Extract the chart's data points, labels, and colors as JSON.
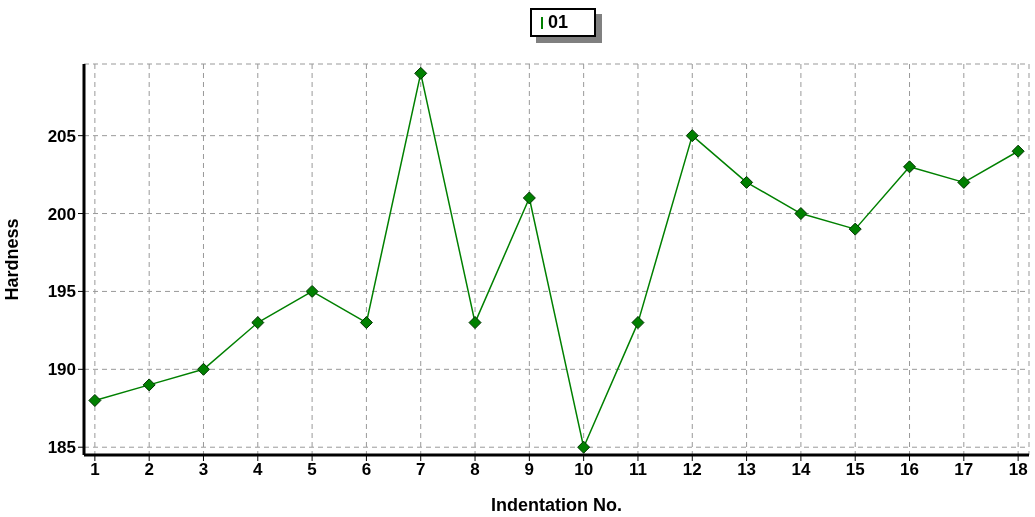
{
  "chart_data": {
    "type": "line",
    "xlabel": "Indentation No.",
    "ylabel": "Hardness",
    "x": [
      1,
      2,
      3,
      4,
      5,
      6,
      7,
      8,
      9,
      10,
      11,
      12,
      13,
      14,
      15,
      16,
      17,
      18
    ],
    "series": [
      {
        "name": "01",
        "color": "#008000",
        "values": [
          188,
          189,
          190,
          193,
          195,
          193,
          209,
          193,
          201,
          185,
          193,
          205,
          202,
          200,
          199,
          203,
          202,
          204
        ]
      }
    ],
    "xlim": [
      0.8,
      18.2
    ],
    "xticks": [
      1,
      2,
      3,
      4,
      5,
      6,
      7,
      8,
      9,
      10,
      11,
      12,
      13,
      14,
      15,
      16,
      17,
      18
    ],
    "ylim": [
      184.5,
      209.6
    ],
    "yticks": [
      185,
      190,
      195,
      200,
      205
    ],
    "grid": true,
    "legend": "top",
    "marker": "diamond",
    "line_style": "solid"
  }
}
